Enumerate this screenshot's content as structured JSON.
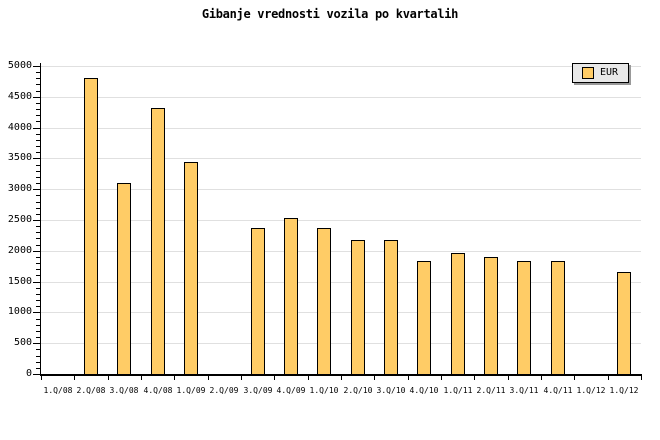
{
  "chart_data": {
    "type": "bar",
    "title": "Gibanje vrednosti vozila po kvartalih",
    "series_name": "EUR",
    "categories": [
      "1.Q/08",
      "2.Q/08",
      "3.Q/08",
      "4.Q/08",
      "1.Q/09",
      "2.Q/09",
      "3.Q/09",
      "4.Q/09",
      "1.Q/10",
      "2.Q/10",
      "3.Q/10",
      "4.Q/10",
      "1.Q/11",
      "2.Q/11",
      "3.Q/11",
      "4.Q/11",
      "1.Q/12",
      "1.Q/12"
    ],
    "values": [
      null,
      4800,
      3100,
      4320,
      3440,
      null,
      2370,
      2530,
      2370,
      2180,
      2180,
      1840,
      1960,
      1900,
      1840,
      1840,
      null,
      1660
    ],
    "ylim": [
      0,
      5000
    ],
    "y_ticks": [
      0,
      500,
      1000,
      1500,
      2000,
      2500,
      3000,
      3500,
      4000,
      4500,
      5000
    ],
    "y_major_step": 500,
    "y_minor_step": 100,
    "xlabel": "",
    "ylabel": "",
    "grid": "horizontal",
    "legend_position": "top-right",
    "colors": {
      "bar_fill": "#FFCC66",
      "bar_border": "#000000",
      "grid_line": "#E0E0E0",
      "axis": "#000000",
      "legend_bg": "#E8E8E8",
      "legend_shadow": "#999999",
      "background": "#FFFFFF"
    }
  }
}
